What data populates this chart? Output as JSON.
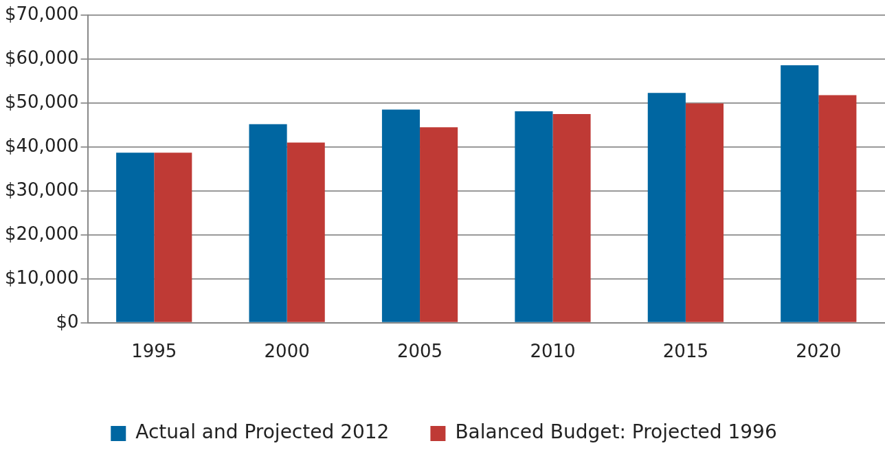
{
  "chart_data": {
    "type": "bar",
    "categories": [
      "1995",
      "2000",
      "2005",
      "2010",
      "2015",
      "2020"
    ],
    "series": [
      {
        "name": "Actual and Projected 2012",
        "color": "#0066a1",
        "values": [
          38700,
          45200,
          48500,
          48100,
          52300,
          58600
        ]
      },
      {
        "name": "Balanced Budget: Projected 1996",
        "color": "#bf3a35",
        "values": [
          38700,
          41000,
          44500,
          47500,
          49900,
          51800
        ]
      }
    ],
    "ylim": [
      0,
      70000
    ],
    "yticks": [
      {
        "value": 0,
        "label": "$0"
      },
      {
        "value": 10000,
        "label": "$10,000"
      },
      {
        "value": 20000,
        "label": "$20,000"
      },
      {
        "value": 30000,
        "label": "$30,000"
      },
      {
        "value": 40000,
        "label": "$40,000"
      },
      {
        "value": 50000,
        "label": "$50,000"
      },
      {
        "value": 60000,
        "label": "$60,000"
      },
      {
        "value": 70000,
        "label": "$70,000"
      }
    ],
    "grid": "y",
    "legend": "bottom"
  }
}
